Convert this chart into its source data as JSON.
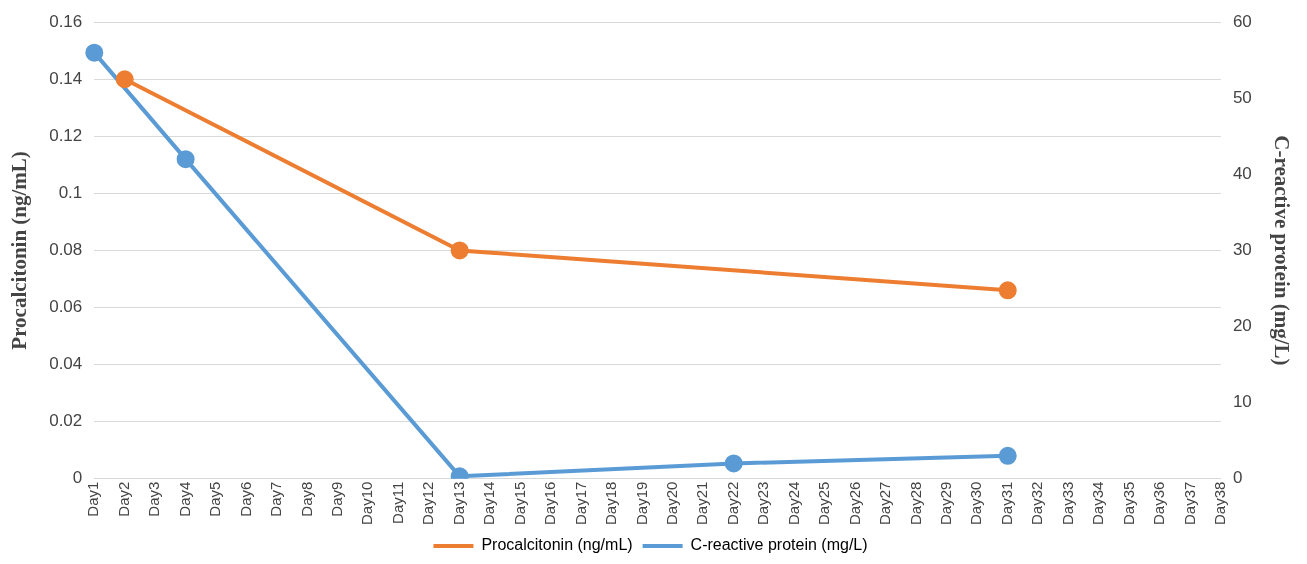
{
  "chart_data": {
    "type": "line",
    "categories": [
      "Day1",
      "Day2",
      "Day3",
      "Day4",
      "Day5",
      "Day6",
      "Day7",
      "Day8",
      "Day9",
      "Day10",
      "Day11",
      "Day12",
      "Day13",
      "Day14",
      "Day15",
      "Day16",
      "Day17",
      "Day18",
      "Day19",
      "Day20",
      "Day21",
      "Day22",
      "Day23",
      "Day24",
      "Day25",
      "Day26",
      "Day27",
      "Day28",
      "Day29",
      "Day30",
      "Day31",
      "Day32",
      "Day33",
      "Day34",
      "Day35",
      "Day36",
      "Day37",
      "Day38"
    ],
    "series": [
      {
        "name": "Procalcitonin (ng/mL)",
        "color": "#ed7d31",
        "values": [
          null,
          0.14,
          null,
          null,
          null,
          null,
          null,
          null,
          null,
          null,
          null,
          null,
          0.08,
          null,
          null,
          null,
          null,
          null,
          null,
          null,
          null,
          null,
          null,
          null,
          null,
          null,
          null,
          null,
          null,
          null,
          0.066,
          null,
          null,
          null,
          null,
          null,
          null,
          null
        ]
      },
      {
        "name": "C-reactive protein (mg/L)",
        "color": "#5b9bd5",
        "axis": "y2",
        "values": [
          56,
          null,
          null,
          42,
          null,
          null,
          null,
          null,
          null,
          null,
          null,
          null,
          0.3,
          null,
          null,
          null,
          null,
          null,
          null,
          null,
          null,
          2,
          null,
          null,
          null,
          null,
          null,
          null,
          null,
          null,
          3,
          null,
          null,
          null,
          null,
          null,
          null,
          null
        ]
      }
    ],
    "ylabel": "Procalcitonin (ng/mL)",
    "y2label": "C-reactive protein (mg/L)",
    "ylim": [
      0,
      0.16
    ],
    "yticks": [
      0,
      0.02,
      0.04,
      0.06,
      0.08,
      0.1,
      0.12,
      0.14,
      0.16
    ],
    "y2lim": [
      0,
      60
    ],
    "y2ticks": [
      0,
      10,
      20,
      30,
      40,
      50,
      60
    ],
    "grid": "y",
    "legend": "bottom",
    "marker": "circle"
  }
}
